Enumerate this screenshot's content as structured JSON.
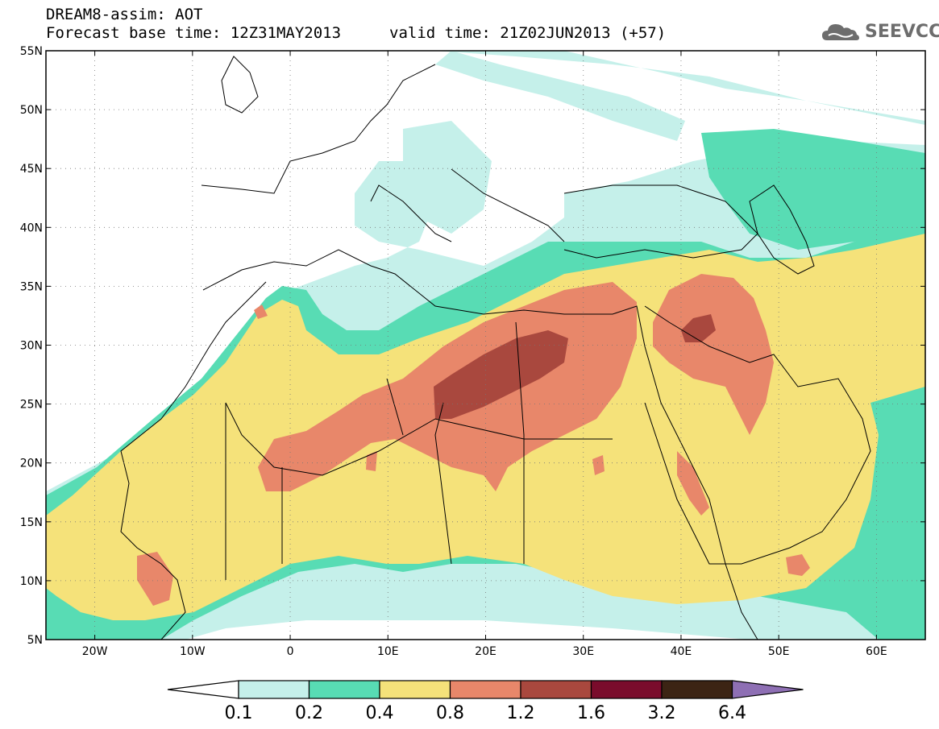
{
  "title": {
    "line1": "DREAM8-assim: AOT",
    "line2": "Forecast base time: 12Z31MAY2013",
    "valid": "valid time: 21Z02JUN2013 (+57)"
  },
  "logo": {
    "text": "SEEVCCC",
    "icon": "cloud-icon",
    "color": "#6d6d6d"
  },
  "map": {
    "lon_range": [
      -25,
      65
    ],
    "lat_range": [
      5,
      55
    ],
    "lon_ticks": [
      {
        "value": -20,
        "label": "20W"
      },
      {
        "value": -10,
        "label": "10W"
      },
      {
        "value": 0,
        "label": "0"
      },
      {
        "value": 10,
        "label": "10E"
      },
      {
        "value": 20,
        "label": "20E"
      },
      {
        "value": 30,
        "label": "30E"
      },
      {
        "value": 40,
        "label": "40E"
      },
      {
        "value": 50,
        "label": "50E"
      },
      {
        "value": 60,
        "label": "60E"
      }
    ],
    "lat_ticks": [
      {
        "value": 5,
        "label": "5N"
      },
      {
        "value": 10,
        "label": "10N"
      },
      {
        "value": 15,
        "label": "15N"
      },
      {
        "value": 20,
        "label": "20N"
      },
      {
        "value": 25,
        "label": "25N"
      },
      {
        "value": 30,
        "label": "30N"
      },
      {
        "value": 35,
        "label": "35N"
      },
      {
        "value": 40,
        "label": "40N"
      },
      {
        "value": 45,
        "label": "45N"
      },
      {
        "value": 50,
        "label": "50N"
      },
      {
        "value": 55,
        "label": "55N"
      }
    ],
    "grid": "dotted",
    "colors": {
      "c01": "#c5f0ea",
      "c02": "#58dcb4",
      "c04": "#f5e27a",
      "c08": "#e8876a",
      "c12": "#a9483e",
      "c16": "#7a0c2c",
      "c32": "#3c2414",
      "c64": "#8e6fb4"
    }
  },
  "colorbar": {
    "labels": [
      "0.1",
      "0.2",
      "0.4",
      "0.8",
      "1.2",
      "1.6",
      "3.2",
      "6.4"
    ],
    "colors": [
      "#c5f0ea",
      "#58dcb4",
      "#f5e27a",
      "#e8876a",
      "#a9483e",
      "#7a0c2c",
      "#3c2414"
    ],
    "under": "#ffffff",
    "over": "#8e6fb4"
  }
}
